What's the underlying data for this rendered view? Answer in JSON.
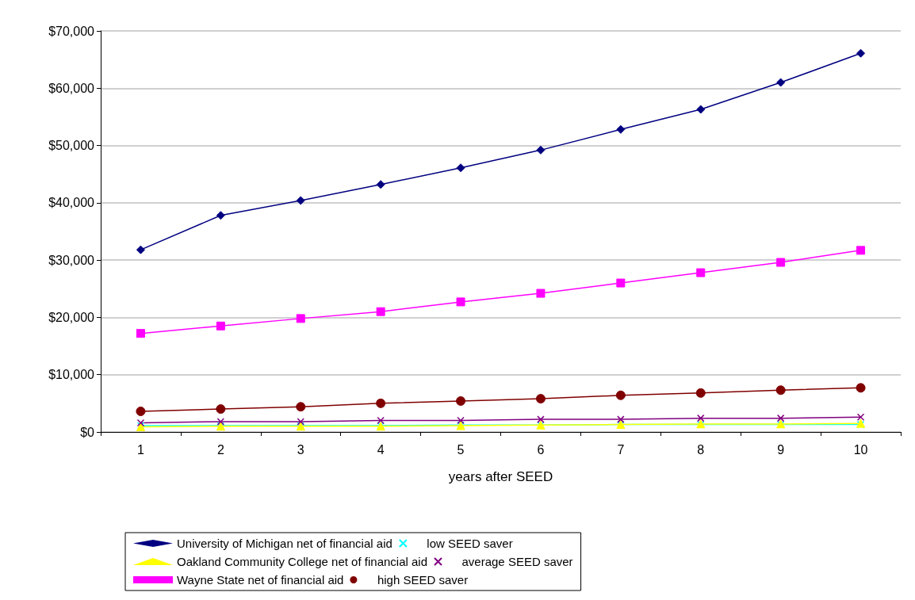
{
  "chart_data": {
    "type": "line",
    "xlabel": "years after SEED",
    "categories": [
      "1",
      "2",
      "3",
      "4",
      "5",
      "6",
      "7",
      "8",
      "9",
      "10"
    ],
    "ylim": [
      0,
      70000
    ],
    "yticks": [
      {
        "value": 0,
        "label": "$0"
      },
      {
        "value": 10000,
        "label": "$10,000"
      },
      {
        "value": 20000,
        "label": "$20,000"
      },
      {
        "value": 30000,
        "label": "$30,000"
      },
      {
        "value": 40000,
        "label": "$40,000"
      },
      {
        "value": 50000,
        "label": "$50,000"
      },
      {
        "value": 60000,
        "label": "$60,000"
      },
      {
        "value": 70000,
        "label": "$70,000"
      }
    ],
    "grid": "y",
    "legend": "bottom",
    "series": [
      {
        "name": "University of Michigan net of financial aid",
        "color": "#000080",
        "marker": "diamond",
        "values": [
          31800,
          37800,
          40400,
          43200,
          46100,
          49200,
          52800,
          56300,
          61000,
          66100
        ]
      },
      {
        "name": "low SEED saver",
        "color": "#00ffff",
        "marker": "cross",
        "values": [
          1100,
          1100,
          1100,
          1100,
          1200,
          1200,
          1300,
          1300,
          1300,
          1300
        ]
      },
      {
        "name": "Oakland Community College net of financial aid",
        "color": "#ffff00",
        "marker": "triangle",
        "values": [
          900,
          1000,
          1000,
          1000,
          1100,
          1200,
          1300,
          1400,
          1400,
          1500
        ]
      },
      {
        "name": "average SEED saver",
        "color": "#800080",
        "marker": "cross",
        "values": [
          1600,
          1800,
          1800,
          2000,
          2000,
          2200,
          2200,
          2400,
          2400,
          2600
        ]
      },
      {
        "name": "Wayne State net of financial aid",
        "color": "#ff00ff",
        "marker": "square",
        "values": [
          17200,
          18500,
          19800,
          21000,
          22700,
          24200,
          26000,
          27800,
          29600,
          31700
        ]
      },
      {
        "name": "high SEED saver",
        "color": "#800000",
        "marker": "circle",
        "values": [
          3600,
          4000,
          4400,
          5000,
          5400,
          5800,
          6400,
          6800,
          7300,
          7700
        ]
      }
    ]
  }
}
